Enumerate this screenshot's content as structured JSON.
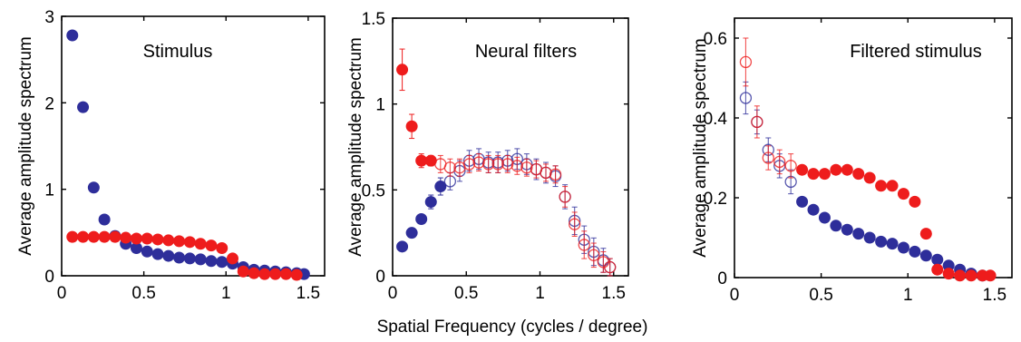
{
  "figure": {
    "xlabel": "Spatial Frequency (cycles / degree)"
  },
  "colors": {
    "blue": "#2e2e9a",
    "red": "#ee1c1c",
    "axis": "#000000"
  },
  "chart_data": [
    {
      "type": "scatter",
      "title": "Stimulus",
      "ylabel": "Average amplitude spectrum",
      "xlim": [
        0,
        1.6
      ],
      "ylim": [
        0,
        3
      ],
      "xticks": [
        0,
        0.5,
        1,
        1.5
      ],
      "xtick_labels": [
        "0",
        "0.5",
        "1",
        "1.5"
      ],
      "yticks": [
        0,
        1,
        2,
        3
      ],
      "ytick_labels": [
        "0",
        "1",
        "2",
        "3"
      ],
      "series": [
        {
          "color": "blue",
          "marker": "filled-circle",
          "x": [
            0.065,
            0.13,
            0.195,
            0.26,
            0.325,
            0.39,
            0.455,
            0.52,
            0.585,
            0.65,
            0.715,
            0.78,
            0.845,
            0.91,
            0.975,
            1.04,
            1.105,
            1.17,
            1.235,
            1.3,
            1.365,
            1.43,
            1.475
          ],
          "y": [
            2.78,
            1.95,
            1.02,
            0.65,
            0.46,
            0.37,
            0.32,
            0.28,
            0.25,
            0.23,
            0.21,
            0.2,
            0.19,
            0.17,
            0.16,
            0.14,
            0.1,
            0.07,
            0.06,
            0.05,
            0.04,
            0.03,
            0.02
          ]
        },
        {
          "color": "red",
          "marker": "filled-circle",
          "x": [
            0.065,
            0.13,
            0.195,
            0.26,
            0.325,
            0.39,
            0.455,
            0.52,
            0.585,
            0.65,
            0.715,
            0.78,
            0.845,
            0.91,
            0.975,
            1.04,
            1.105,
            1.17,
            1.235,
            1.3,
            1.365,
            1.43
          ],
          "y": [
            0.45,
            0.45,
            0.45,
            0.45,
            0.45,
            0.44,
            0.43,
            0.43,
            0.42,
            0.41,
            0.4,
            0.39,
            0.37,
            0.35,
            0.32,
            0.2,
            0.05,
            0.03,
            0.02,
            0.02,
            0.02,
            0.01
          ]
        }
      ]
    },
    {
      "type": "scatter",
      "title": "Neural filters",
      "ylabel": "Average amplitude spectrum",
      "xlim": [
        0,
        1.6
      ],
      "ylim": [
        0,
        1.5
      ],
      "xticks": [
        0,
        0.5,
        1,
        1.5
      ],
      "xtick_labels": [
        "0",
        "0.5",
        "1",
        "1.5"
      ],
      "yticks": [
        0,
        0.5,
        1,
        1.5
      ],
      "ytick_labels": [
        "0",
        "0.5",
        "1",
        "1.5"
      ],
      "series": [
        {
          "color": "blue",
          "marker": "filled-circle",
          "x": [
            0.065,
            0.13,
            0.195,
            0.26,
            0.325
          ],
          "y": [
            0.17,
            0.25,
            0.33,
            0.43,
            0.52
          ],
          "err": [
            0.01,
            0.01,
            0.02,
            0.04,
            0.05
          ]
        },
        {
          "color": "blue",
          "marker": "open-circle",
          "x": [
            0.39,
            0.455,
            0.52,
            0.585,
            0.65,
            0.715,
            0.78,
            0.845,
            0.91,
            0.975,
            1.04,
            1.105,
            1.17,
            1.235,
            1.3,
            1.365,
            1.43,
            1.475
          ],
          "y": [
            0.55,
            0.61,
            0.67,
            0.68,
            0.66,
            0.66,
            0.67,
            0.68,
            0.65,
            0.62,
            0.6,
            0.58,
            0.46,
            0.32,
            0.21,
            0.14,
            0.09,
            0.05
          ],
          "err": [
            0.05,
            0.06,
            0.06,
            0.06,
            0.06,
            0.06,
            0.06,
            0.06,
            0.06,
            0.06,
            0.06,
            0.06,
            0.07,
            0.08,
            0.08,
            0.08,
            0.07,
            0.05
          ]
        },
        {
          "color": "red",
          "marker": "filled-circle",
          "x": [
            0.065,
            0.13,
            0.195,
            0.26
          ],
          "y": [
            1.2,
            0.87,
            0.67,
            0.67
          ],
          "err": [
            0.12,
            0.07,
            0.04,
            0.03
          ]
        },
        {
          "color": "red",
          "marker": "open-circle",
          "x": [
            0.325,
            0.39,
            0.455,
            0.52,
            0.585,
            0.65,
            0.715,
            0.78,
            0.845,
            0.91,
            0.975,
            1.04,
            1.105,
            1.17,
            1.235,
            1.3,
            1.365,
            1.43,
            1.475
          ],
          "y": [
            0.65,
            0.63,
            0.63,
            0.65,
            0.66,
            0.65,
            0.65,
            0.65,
            0.64,
            0.63,
            0.62,
            0.6,
            0.59,
            0.46,
            0.3,
            0.18,
            0.12,
            0.08,
            0.05
          ],
          "err": [
            0.05,
            0.05,
            0.05,
            0.05,
            0.05,
            0.05,
            0.05,
            0.05,
            0.05,
            0.05,
            0.05,
            0.05,
            0.05,
            0.06,
            0.07,
            0.08,
            0.07,
            0.06,
            0.05
          ]
        }
      ]
    },
    {
      "type": "scatter",
      "title": "Filtered stimulus",
      "ylabel": "Average amplitude spectrum",
      "xlim": [
        0,
        1.6
      ],
      "ylim": [
        0,
        0.65
      ],
      "xticks": [
        0,
        0.5,
        1,
        1.5
      ],
      "xtick_labels": [
        "0",
        "0.5",
        "1",
        "1.5"
      ],
      "yticks": [
        0,
        0.2,
        0.4,
        0.6
      ],
      "ytick_labels": [
        "0",
        "0.2",
        "0.4",
        "0.6"
      ],
      "series": [
        {
          "color": "blue",
          "marker": "open-circle",
          "x": [
            0.065,
            0.13,
            0.195,
            0.26,
            0.325
          ],
          "y": [
            0.45,
            0.39,
            0.32,
            0.28,
            0.24
          ],
          "err": [
            0.04,
            0.03,
            0.03,
            0.03,
            0.03
          ]
        },
        {
          "color": "blue",
          "marker": "filled-circle",
          "x": [
            0.39,
            0.455,
            0.52,
            0.585,
            0.65,
            0.715,
            0.78,
            0.845,
            0.91,
            0.975,
            1.04,
            1.105,
            1.17,
            1.235,
            1.3,
            1.365,
            1.43
          ],
          "y": [
            0.19,
            0.17,
            0.15,
            0.13,
            0.12,
            0.11,
            0.1,
            0.09,
            0.085,
            0.075,
            0.065,
            0.055,
            0.045,
            0.03,
            0.02,
            0.01,
            0.005
          ]
        },
        {
          "color": "red",
          "marker": "open-circle",
          "x": [
            0.065,
            0.13,
            0.195,
            0.26,
            0.325
          ],
          "y": [
            0.54,
            0.39,
            0.3,
            0.29,
            0.28
          ],
          "err": [
            0.06,
            0.04,
            0.03,
            0.03,
            0.03
          ]
        },
        {
          "color": "red",
          "marker": "filled-circle",
          "x": [
            0.39,
            0.455,
            0.52,
            0.585,
            0.65,
            0.715,
            0.78,
            0.845,
            0.91,
            0.975,
            1.04,
            1.105,
            1.17,
            1.235,
            1.3,
            1.365,
            1.43,
            1.475
          ],
          "y": [
            0.27,
            0.26,
            0.26,
            0.27,
            0.27,
            0.26,
            0.25,
            0.23,
            0.23,
            0.21,
            0.19,
            0.11,
            0.02,
            0.01,
            0.005,
            0.005,
            0.005,
            0.005
          ]
        }
      ]
    }
  ]
}
